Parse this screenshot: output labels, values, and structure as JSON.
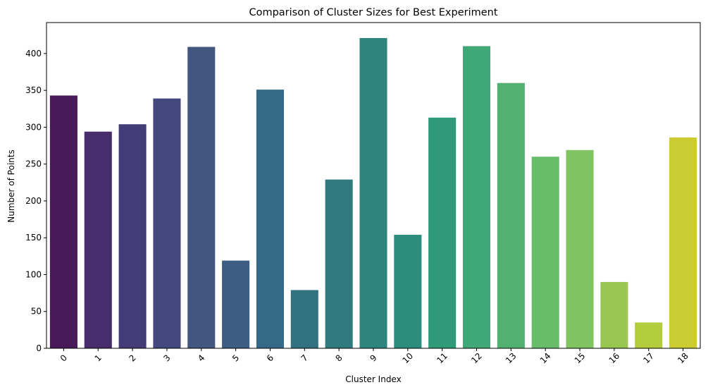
{
  "chart_data": {
    "type": "bar",
    "title": "Comparison of Cluster Sizes for Best Experiment",
    "xlabel": "Cluster Index",
    "ylabel": "Number of Points",
    "categories": [
      "0",
      "1",
      "2",
      "3",
      "4",
      "5",
      "6",
      "7",
      "8",
      "9",
      "10",
      "11",
      "12",
      "13",
      "14",
      "15",
      "16",
      "17",
      "18"
    ],
    "values": [
      343,
      294,
      304,
      339,
      409,
      119,
      351,
      79,
      229,
      421,
      154,
      313,
      410,
      360,
      260,
      269,
      90,
      35,
      286
    ],
    "yticks": [
      0,
      50,
      100,
      150,
      200,
      250,
      300,
      350,
      400
    ],
    "ylim": [
      0,
      442
    ],
    "grid": false,
    "legend": "none",
    "colors": [
      "#481a5a",
      "#482d6d",
      "#443c78",
      "#44487f",
      "#42567f",
      "#3d5d82",
      "#356a86",
      "#30727f",
      "#2f7b7f",
      "#2e857e",
      "#2c8d7c",
      "#2e9a78",
      "#40a776",
      "#52b071",
      "#69bc6a",
      "#7fc460",
      "#98c650",
      "#b3cc3b",
      "#cbcc31"
    ],
    "xtick_rotation": 45
  }
}
